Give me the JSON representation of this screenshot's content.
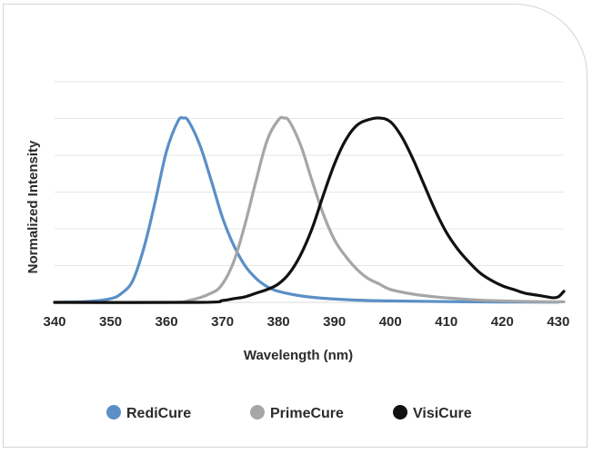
{
  "chart_data": {
    "type": "line",
    "title": "",
    "xlabel": "Wavelength (nm)",
    "ylabel": "Normalized Intensity",
    "xlim": [
      340,
      431
    ],
    "ylim": [
      0,
      1.0
    ],
    "x_ticks": [
      340,
      350,
      360,
      370,
      380,
      390,
      400,
      410,
      420,
      430
    ],
    "y_ticks_visible": false,
    "grid": true,
    "legend_position": "bottom",
    "series": [
      {
        "name": "RediCure",
        "color": "#5b8fc7",
        "x": [
          340,
          346,
          350,
          352,
          354,
          356,
          358,
          360,
          362,
          363,
          364,
          366,
          368,
          370,
          372,
          374,
          376,
          378,
          380,
          384,
          388,
          392,
          396,
          400,
          410,
          420,
          430
        ],
        "y": [
          0.0,
          0.005,
          0.02,
          0.05,
          0.12,
          0.3,
          0.55,
          0.82,
          0.98,
          1.0,
          0.98,
          0.85,
          0.66,
          0.46,
          0.31,
          0.2,
          0.13,
          0.085,
          0.06,
          0.035,
          0.022,
          0.015,
          0.01,
          0.008,
          0.004,
          0.002,
          0.001
        ]
      },
      {
        "name": "PrimeCure",
        "color": "#a6a6a6",
        "x": [
          340,
          360,
          364,
          368,
          370,
          372,
          374,
          376,
          378,
          380,
          381,
          382,
          384,
          386,
          388,
          390,
          392,
          394,
          396,
          398,
          400,
          404,
          408,
          412,
          416,
          420,
          424,
          428,
          431
        ],
        "y": [
          0.0,
          0.0,
          0.01,
          0.05,
          0.1,
          0.22,
          0.42,
          0.66,
          0.88,
          0.99,
          1.0,
          0.98,
          0.85,
          0.66,
          0.48,
          0.34,
          0.25,
          0.18,
          0.13,
          0.1,
          0.07,
          0.045,
          0.03,
          0.02,
          0.012,
          0.008,
          0.005,
          0.003,
          0.003
        ]
      },
      {
        "name": "VisiCure",
        "color": "#111111",
        "x": [
          340,
          366,
          370,
          372,
          374,
          376,
          378,
          380,
          382,
          384,
          386,
          388,
          390,
          392,
          394,
          396,
          398,
          400,
          402,
          404,
          406,
          408,
          410,
          412,
          414,
          416,
          418,
          420,
          422,
          424,
          426,
          428,
          429,
          430,
          431
        ],
        "y": [
          0.0,
          0.0,
          0.01,
          0.02,
          0.03,
          0.05,
          0.07,
          0.1,
          0.16,
          0.26,
          0.4,
          0.58,
          0.75,
          0.88,
          0.96,
          0.99,
          1.0,
          0.98,
          0.9,
          0.78,
          0.64,
          0.5,
          0.38,
          0.29,
          0.22,
          0.16,
          0.12,
          0.09,
          0.07,
          0.05,
          0.04,
          0.03,
          0.025,
          0.03,
          0.06
        ]
      }
    ],
    "legend": [
      {
        "label": "RediCure",
        "color": "#5b8fc7"
      },
      {
        "label": "PrimeCure",
        "color": "#a6a6a6"
      },
      {
        "label": "VisiCure",
        "color": "#111111"
      }
    ]
  }
}
